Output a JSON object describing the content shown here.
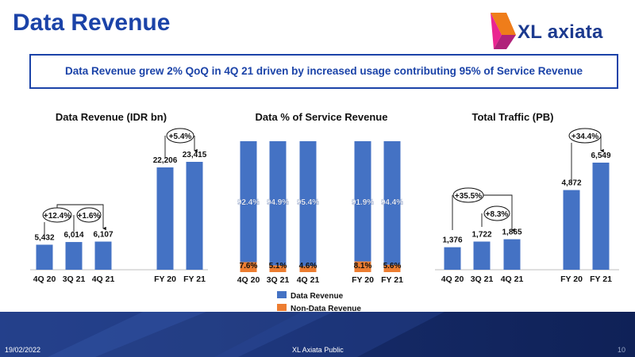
{
  "page": {
    "title": "Data Revenue",
    "brand": "XL axiata",
    "headline": "Data Revenue grew 2% QoQ in 4Q 21 driven by increased usage contributing 95% of Service Revenue",
    "footer": {
      "date": "19/02/2022",
      "classification": "XL Axiata Public",
      "page_number": "10"
    }
  },
  "colors": {
    "primary": "#1b43a8",
    "bar_blue": "#4472c4",
    "bar_orange": "#ed7d31",
    "footer_navy": "#142a6b"
  },
  "chart_data": [
    {
      "type": "bar",
      "title": "Data Revenue (IDR bn)",
      "categories": [
        "4Q 20",
        "3Q 21",
        "4Q 21",
        "FY 20",
        "FY 21"
      ],
      "values": [
        5432,
        6014,
        6107,
        22206,
        23415
      ],
      "value_labels": [
        "5,432",
        "6,014",
        "6,107",
        "22,206",
        "23,415"
      ],
      "annotations": [
        {
          "text": "+12.4%",
          "from": "4Q 20",
          "to": "4Q 21"
        },
        {
          "text": "+1.6%",
          "from": "3Q 21",
          "to": "4Q 21"
        },
        {
          "text": "+5.4%",
          "from": "FY 20",
          "to": "FY 21"
        }
      ]
    },
    {
      "type": "bar",
      "stacked": true,
      "title": "Data % of Service Revenue",
      "categories": [
        "4Q 20",
        "3Q 21",
        "4Q 21",
        "FY 20",
        "FY 21"
      ],
      "series": [
        {
          "name": "Data Revenue",
          "values": [
            92.4,
            94.9,
            95.4,
            91.9,
            94.4
          ],
          "labels": [
            "92.4%",
            "94.9%",
            "95.4%",
            "91.9%",
            "94.4%"
          ]
        },
        {
          "name": "Non-Data Revenue",
          "values": [
            7.6,
            5.1,
            4.6,
            8.1,
            5.6
          ],
          "labels": [
            "7.6%",
            "5.1%",
            "4.6%",
            "8.1%",
            "5.6%"
          ]
        }
      ],
      "legend": "bottom"
    },
    {
      "type": "bar",
      "title": "Total Traffic (PB)",
      "categories": [
        "4Q 20",
        "3Q 21",
        "4Q 21",
        "FY 20",
        "FY 21"
      ],
      "values": [
        1376,
        1722,
        1865,
        4872,
        6549
      ],
      "value_labels": [
        "1,376",
        "1,722",
        "1,865",
        "4,872",
        "6,549"
      ],
      "annotations": [
        {
          "text": "+35.5%",
          "from": "4Q 20",
          "to": "4Q 21"
        },
        {
          "text": "+8.3%",
          "from": "3Q 21",
          "to": "4Q 21"
        },
        {
          "text": "+34.4%",
          "from": "FY 20",
          "to": "FY 21"
        }
      ]
    }
  ]
}
